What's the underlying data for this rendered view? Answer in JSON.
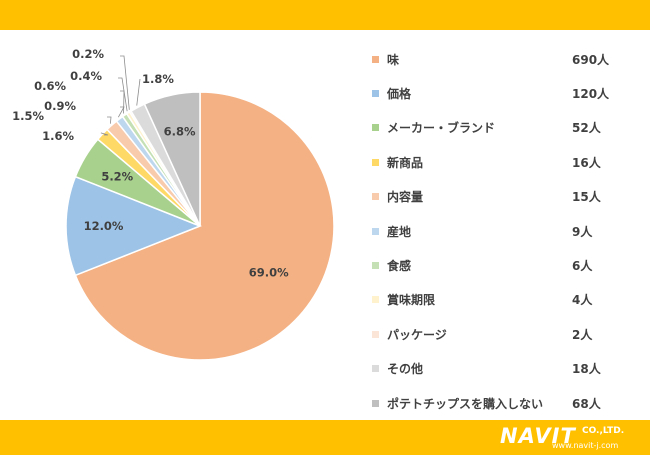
{
  "chart_data": {
    "type": "pie",
    "slices": [
      {
        "label": "味",
        "count": "690人",
        "percent": 69.0,
        "percent_label": "69.0%",
        "color": "#f4b183"
      },
      {
        "label": "価格",
        "count": "120人",
        "percent": 12.0,
        "percent_label": "12.0%",
        "color": "#9dc3e6"
      },
      {
        "label": "メーカー・ブランド",
        "count": "52人",
        "percent": 5.2,
        "percent_label": "5.2%",
        "color": "#a9d18e"
      },
      {
        "label": "新商品",
        "count": "16人",
        "percent": 1.6,
        "percent_label": "1.6%",
        "color": "#ffd966"
      },
      {
        "label": "内容量",
        "count": "15人",
        "percent": 1.5,
        "percent_label": "1.5%",
        "color": "#f8cbad"
      },
      {
        "label": "産地",
        "count": "9人",
        "percent": 0.9,
        "percent_label": "0.9%",
        "color": "#bdd7ee"
      },
      {
        "label": "食感",
        "count": "6人",
        "percent": 0.6,
        "percent_label": "0.6%",
        "color": "#c5e0b4"
      },
      {
        "label": "賞味期限",
        "count": "4人",
        "percent": 0.4,
        "percent_label": "0.4%",
        "color": "#fff2cc"
      },
      {
        "label": "パッケージ",
        "count": "2人",
        "percent": 0.2,
        "percent_label": "0.2%",
        "color": "#fbe5d6"
      },
      {
        "label": "その他",
        "count": "18人",
        "percent": 1.8,
        "percent_label": "1.8%",
        "color": "#dbdbdb"
      },
      {
        "label": "ポテトチップスを購入しない",
        "count": "68人",
        "percent": 6.8,
        "percent_label": "6.8%",
        "color": "#bfbfbf"
      }
    ],
    "legend_position": "right"
  },
  "logo": {
    "text": "NAVIT",
    "company": "CO.,LTD.",
    "url": "www.navit-j.com"
  }
}
